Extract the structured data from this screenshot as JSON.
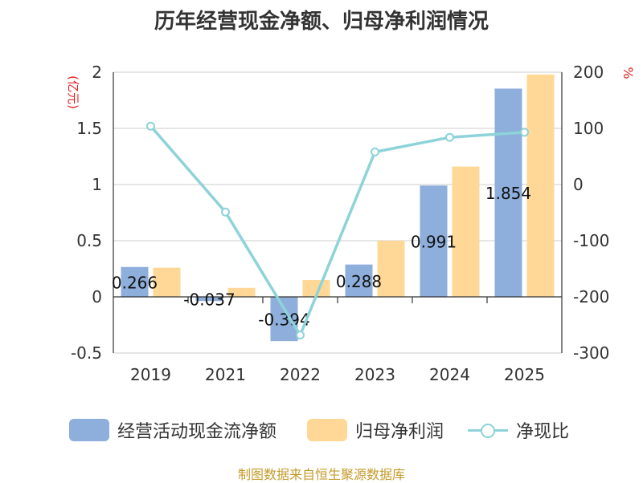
{
  "title": "历年经营现金净额、归母净利润情况",
  "colors": {
    "cash": "#8eaedb",
    "profit": "#ffd897",
    "ratio": "#8dd3d9",
    "unit": "#e02020",
    "source": "#c59a2a"
  },
  "chart_data": {
    "type": "bar+line",
    "categories": [
      "2019",
      "2021",
      "2022",
      "2023",
      "2024",
      "2025"
    ],
    "series": [
      {
        "name": "经营活动现金流净额",
        "type": "bar",
        "axis": "left",
        "values": [
          0.266,
          -0.037,
          -0.394,
          0.288,
          0.991,
          1.854
        ]
      },
      {
        "name": "归母净利润",
        "type": "bar",
        "axis": "left",
        "values": [
          0.26,
          0.08,
          0.15,
          0.5,
          1.16,
          1.98
        ]
      },
      {
        "name": "净现比",
        "type": "line",
        "axis": "right",
        "values": [
          104,
          -49,
          -268,
          58,
          84,
          93
        ]
      }
    ],
    "data_labels": [
      "0.266",
      "-0.037",
      "-0.394",
      "0.288",
      "0.991",
      "1.854"
    ],
    "left_axis": {
      "unit": "(亿元)",
      "min": -0.5,
      "max": 2,
      "ticks": [
        "2",
        "1.5",
        "1",
        "0.5",
        "0",
        "-0.5"
      ]
    },
    "right_axis": {
      "unit": "%",
      "min": -300,
      "max": 200,
      "ticks": [
        "200",
        "100",
        "0",
        "-100",
        "-200",
        "-300"
      ]
    }
  },
  "legend": {
    "cash": "经营活动现金流净额",
    "profit": "归母净利润",
    "ratio": "净现比"
  },
  "source": "制图数据来自恒生聚源数据库"
}
